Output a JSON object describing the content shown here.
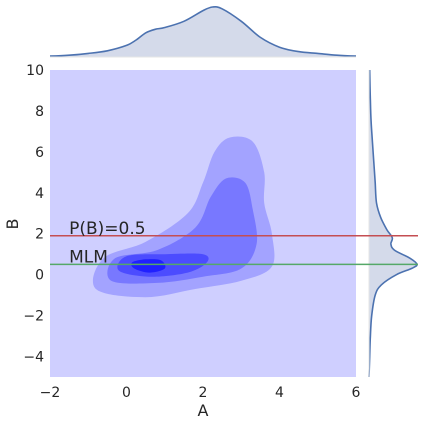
{
  "chart_data": {
    "type": "heatmap",
    "subtype": "joint-kde",
    "main": {
      "xlabel": "A",
      "ylabel": "B",
      "xlim": [
        -2,
        6
      ],
      "ylim": [
        -5,
        10
      ],
      "xticks": [
        "−2",
        "0",
        "2",
        "4",
        "6"
      ],
      "yticks": [
        "−4",
        "−2",
        "0",
        "2",
        "4",
        "6",
        "8",
        "10"
      ],
      "grid": false,
      "background_color": "#CFCFFF",
      "contour_levels": [
        {
          "level": 1,
          "color": "#A3A3FF",
          "center": [
            2.05,
            1.55
          ],
          "shape": "outer"
        },
        {
          "level": 2,
          "color": "#7878FF",
          "center": [
            2.1,
            1.5
          ],
          "shape": "mid"
        },
        {
          "level": 3,
          "color": "#4C4CFF",
          "center": [
            0.7,
            0.5
          ],
          "shape": "inner"
        },
        {
          "level": 4,
          "color": "#2020FF",
          "center": [
            0.55,
            0.45
          ],
          "shape": "core"
        }
      ]
    },
    "hlines": [
      {
        "y": 1.9,
        "label": "P(B)=0.5",
        "color": "#C44E52"
      },
      {
        "y": 0.5,
        "label": "MLM",
        "color": "#55A868"
      }
    ],
    "marginal_x": {
      "variable": "A",
      "x": [
        -2.0,
        -1.5,
        -1.0,
        -0.5,
        0.0,
        0.25,
        0.5,
        0.75,
        1.0,
        1.5,
        2.0,
        2.25,
        2.5,
        3.0,
        3.5,
        4.0,
        4.5,
        5.0,
        5.5,
        6.0
      ],
      "density": [
        0.01,
        0.02,
        0.04,
        0.07,
        0.13,
        0.19,
        0.27,
        0.31,
        0.33,
        0.4,
        0.52,
        0.56,
        0.54,
        0.4,
        0.22,
        0.11,
        0.06,
        0.04,
        0.02,
        0.01
      ],
      "fill_color": "#D4DAEA",
      "line_color": "#4C72B0"
    },
    "marginal_y": {
      "variable": "B",
      "y": [
        -5,
        -4,
        -3,
        -2,
        -1,
        -0.5,
        0,
        0.3,
        0.5,
        0.8,
        1.2,
        1.5,
        1.8,
        2.2,
        2.8,
        3.5,
        4.5,
        5.5,
        6.5,
        7.5,
        8.5,
        10
      ],
      "density": [
        0.0,
        0.01,
        0.02,
        0.04,
        0.09,
        0.18,
        0.4,
        0.62,
        0.7,
        0.6,
        0.37,
        0.32,
        0.34,
        0.26,
        0.17,
        0.11,
        0.09,
        0.07,
        0.05,
        0.03,
        0.02,
        0.01
      ],
      "fill_color": "#D4DAEA",
      "line_color": "#4C72B0"
    }
  }
}
